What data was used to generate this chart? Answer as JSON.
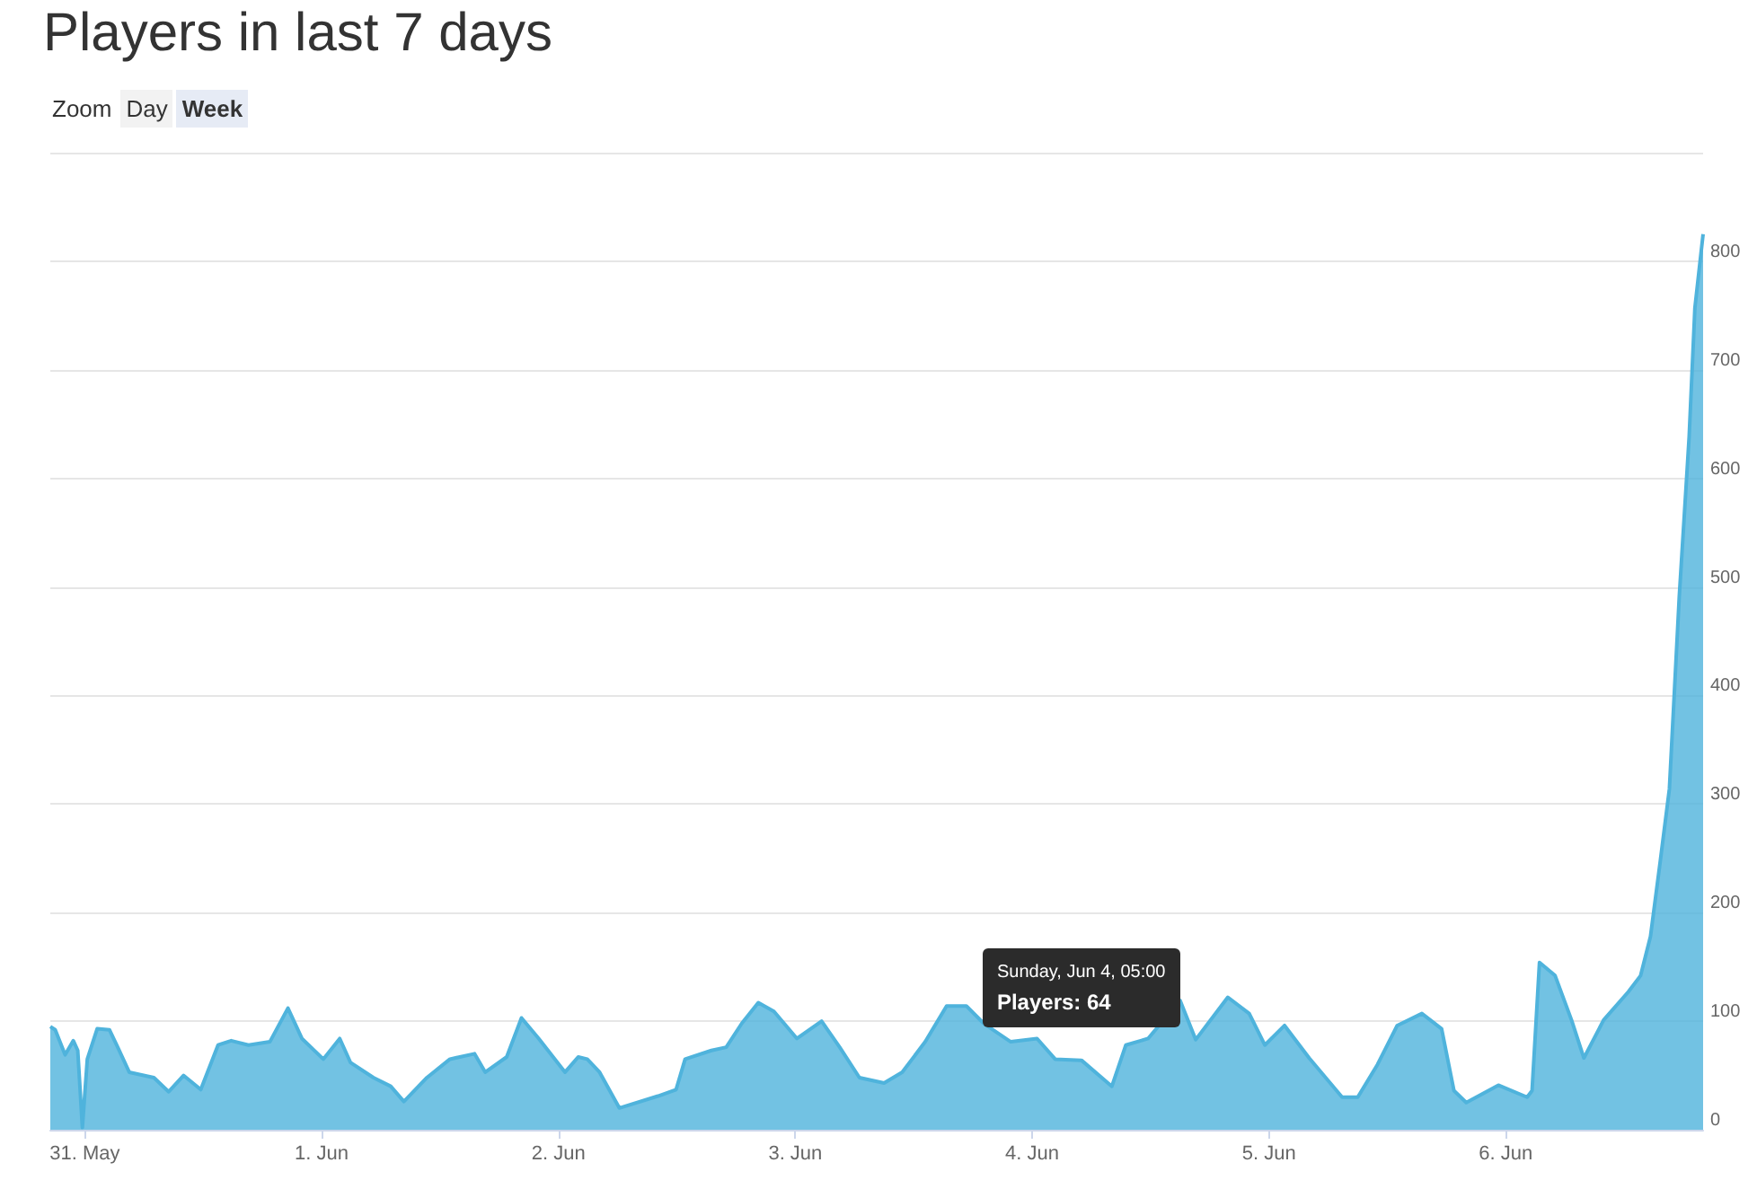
{
  "chart_data": {
    "type": "area",
    "title": "Players in last 7 days",
    "annotations": [
      "Zoom",
      "Day",
      "Week",
      {
        "text": "Sunday, Jun 4, 05:00\nPlayers: 64",
        "x": "--06-04T05:00",
        "y": 64
      }
    ],
    "x": [
      "--05-30T20:30",
      "--05-30T21:00",
      "--05-30T22:00",
      "--05-30T22:50",
      "--05-30T23:17",
      "--05-30T23:45",
      "--05-31T00:15",
      "--05-31T01:15",
      "--05-31T02:30",
      "--05-31T03:20",
      "--05-31T04:30",
      "--05-31T07:00",
      "--05-31T08:30",
      "--05-31T10:00",
      "--05-31T11:45",
      "--05-31T13:30",
      "--05-31T14:50",
      "--05-31T16:35",
      "--05-31T18:45",
      "--05-31T20:35",
      "--05-31T22:00",
      "--06-01T00:10",
      "--06-01T01:50",
      "--06-01T02:55",
      "--06-01T05:15",
      "--06-01T07:00",
      "--06-01T08:20",
      "--06-01T10:40",
      "--06-01T13:00",
      "--06-01T15:30",
      "--06-01T16:35",
      "--06-01T18:45",
      "--06-01T20:15",
      "--06-01T22:00",
      "--06-02T00:40",
      "--06-02T02:00",
      "--06-02T02:55",
      "--06-02T04:10",
      "--06-02T06:10",
      "--06-02T10:05",
      "--06-02T11:55",
      "--06-02T12:50",
      "--06-02T15:30",
      "--06-02T17:00",
      "--06-02T18:35",
      "--06-02T20:15",
      "--06-02T21:50",
      "--06-03T00:10",
      "--06-03T02:40",
      "--06-03T04:30",
      "--06-03T06:30",
      "--06-03T09:00",
      "--06-03T10:50",
      "--06-03T13:10",
      "--06-03T15:20",
      "--06-03T17:20",
      "--06-03T19:05",
      "--06-03T21:50",
      "--06-04T00:30",
      "--06-04T02:20",
      "--06-04T05:00",
      "--06-04T08:05",
      "--06-04T09:30",
      "--06-04T11:45",
      "--06-04T15:00",
      "--06-04T16:35",
      "--06-04T19:50",
      "--06-04T22:00",
      "--06-04T23:35",
      "--06-05T01:35",
      "--06-05T04:05",
      "--06-05T07:25",
      "--06-05T09:00",
      "--06-05T11:00",
      "--06-05T13:00",
      "--06-05T15:30",
      "--06-05T17:30",
      "--06-05T18:45",
      "--06-05T20:00",
      "--06-05T23:15",
      "--06-06T02:10",
      "--06-06T02:40",
      "--06-06T03:25",
      "--06-06T05:00",
      "--06-06T06:40",
      "--06-06T07:55",
      "--06-06T09:55",
      "--06-06T12:25",
      "--06-06T13:40",
      "--06-06T14:40",
      "--06-06T15:40",
      "--06-06T16:35",
      "--06-06T17:35",
      "--06-06T18:35",
      "--06-06T19:10",
      "--06-06T20:00"
    ],
    "series": [
      {
        "color": "#4fb3dc",
        "values": [
          95,
          92,
          69,
          82,
          73,
          2,
          65,
          93,
          92,
          76,
          53,
          48,
          35,
          50,
          37,
          78,
          82,
          78,
          81,
          112,
          84,
          65,
          84,
          62,
          48,
          40,
          26,
          48,
          65,
          70,
          53,
          67,
          103,
          84,
          53,
          67,
          65,
          53,
          20,
          31,
          37,
          65,
          73,
          76,
          98,
          117,
          109,
          84,
          100,
          76,
          48,
          43,
          53,
          81,
          114,
          114,
          98,
          81,
          84,
          65,
          64,
          40,
          78,
          84,
          119,
          83,
          122,
          107,
          78,
          96,
          66,
          30,
          30,
          60,
          96,
          107,
          93,
          36,
          25,
          41,
          30,
          36,
          154,
          142,
          101,
          66,
          101,
          127,
          142,
          178,
          248,
          314,
          491,
          638,
          757,
          825
        ]
      }
    ],
    "xlim": [
      "--05-30T20:30",
      "--06-06T20:00"
    ],
    "xticks": [
      {
        "value": "--05-31",
        "label": "31. May"
      },
      {
        "value": "--06-01",
        "label": "1. Jun"
      },
      {
        "value": "--06-02",
        "label": "2. Jun"
      },
      {
        "value": "--06-03",
        "label": "3. Jun"
      },
      {
        "value": "--06-04",
        "label": "4. Jun"
      },
      {
        "value": "--06-05",
        "label": "5. Jun"
      },
      {
        "value": "--06-06",
        "label": "6. Jun"
      }
    ],
    "ylim": [
      0,
      900
    ],
    "yticks": [
      0,
      100,
      200,
      300,
      400,
      500,
      600,
      700,
      800,
      {
        "value": 900,
        "label": null
      }
    ],
    "grid": "y",
    "marker": "none",
    "line_style": "solid"
  }
}
